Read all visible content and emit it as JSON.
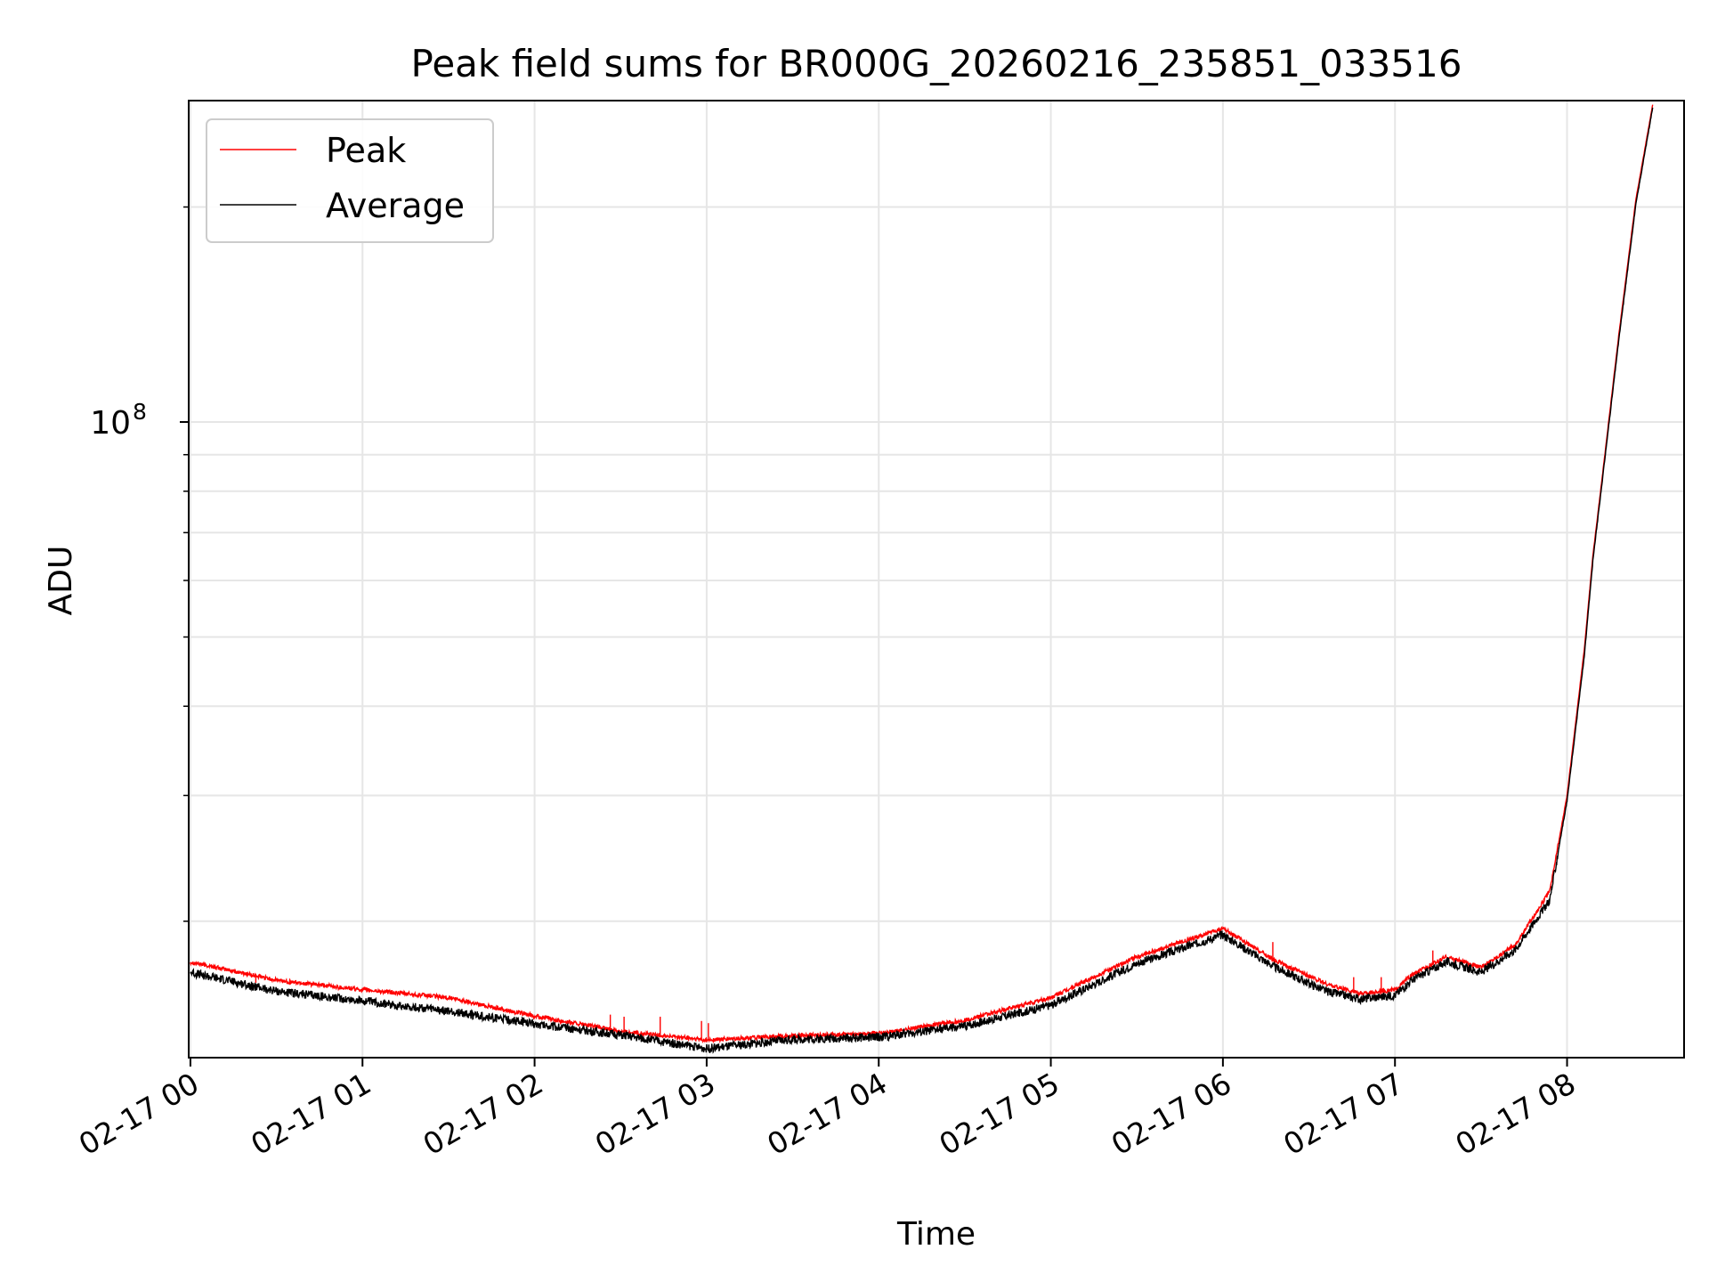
{
  "chart_data": {
    "type": "line",
    "title": "Peak field sums for BR000G_20260216_235851_033516",
    "xlabel": "Time",
    "ylabel": "ADU",
    "yscale": "log",
    "x_unit": "hours since 02-17 00:00",
    "xlim": [
      -0.01,
      8.68
    ],
    "ylim_log10": [
      7.11,
      8.45
    ],
    "grid": true,
    "legend_position": "upper-left",
    "x_ticks": [
      {
        "value": 0,
        "label": "02-17 00"
      },
      {
        "value": 1,
        "label": "02-17 01"
      },
      {
        "value": 2,
        "label": "02-17 02"
      },
      {
        "value": 3,
        "label": "02-17 03"
      },
      {
        "value": 4,
        "label": "02-17 04"
      },
      {
        "value": 5,
        "label": "02-17 05"
      },
      {
        "value": 6,
        "label": "02-17 06"
      },
      {
        "value": 7,
        "label": "02-17 07"
      },
      {
        "value": 8,
        "label": "02-17 08"
      }
    ],
    "y_major_ticks": [
      {
        "value": 100000000,
        "label_base": "10",
        "label_exp": "8"
      }
    ],
    "y_minor_ticks": [
      20000000.0,
      30000000.0,
      40000000.0,
      50000000.0,
      60000000.0,
      70000000.0,
      80000000.0,
      90000000.0,
      200000000.0
    ],
    "x": [
      0,
      0.5,
      1,
      1.5,
      2,
      2.5,
      3,
      3.5,
      4,
      4.5,
      5,
      5.5,
      6,
      6.3,
      6.6,
      6.8,
      7,
      7.1,
      7.3,
      7.5,
      7.7,
      7.9,
      8.0,
      8.1,
      8.15,
      8.2,
      8.3,
      8.4,
      8.5
    ],
    "series": [
      {
        "name": "Peak",
        "color": "#ff0000",
        "values": [
          17500000.0,
          16500000.0,
          16000000.0,
          15600000.0,
          14700000.0,
          14000000.0,
          13600000.0,
          13800000.0,
          13900000.0,
          14500000.0,
          15600000.0,
          17800000.0,
          19500000.0,
          17600000.0,
          16300000.0,
          15800000.0,
          16000000.0,
          16800000.0,
          17800000.0,
          17200000.0,
          18500000.0,
          22000000.0,
          30000000.0,
          48000000.0,
          65000000.0,
          82000000.0,
          132000000.0,
          205000000.0,
          280000000.0
        ]
      },
      {
        "name": "Average",
        "color": "#000000",
        "values": [
          17000000.0,
          16000000.0,
          15500000.0,
          15000000.0,
          14400000.0,
          13900000.0,
          13300000.0,
          13700000.0,
          13800000.0,
          14300000.0,
          15300000.0,
          17500000.0,
          19200000.0,
          17300000.0,
          16000000.0,
          15600000.0,
          15800000.0,
          16600000.0,
          17600000.0,
          17000000.0,
          18300000.0,
          21500000.0,
          29500000.0,
          47000000.0,
          64000000.0,
          81000000.0,
          130000000.0,
          202000000.0,
          278000000.0
        ]
      }
    ],
    "spikes": [
      {
        "series": "Peak",
        "x": 0.38,
        "y": 16400000.0
      },
      {
        "series": "Peak",
        "x": 2.44,
        "y": 14800000.0
      },
      {
        "series": "Peak",
        "x": 2.52,
        "y": 14700000.0
      },
      {
        "series": "Peak",
        "x": 2.73,
        "y": 14700000.0
      },
      {
        "series": "Peak",
        "x": 2.97,
        "y": 14500000.0
      },
      {
        "series": "Peak",
        "x": 3.01,
        "y": 14400000.0
      },
      {
        "series": "Peak",
        "x": 4.7,
        "y": 15100000.0
      },
      {
        "series": "Peak",
        "x": 6.29,
        "y": 18700000.0
      },
      {
        "series": "Peak",
        "x": 6.76,
        "y": 16700000.0
      },
      {
        "series": "Peak",
        "x": 6.92,
        "y": 16700000.0
      },
      {
        "series": "Peak",
        "x": 7.22,
        "y": 18200000.0
      }
    ]
  }
}
